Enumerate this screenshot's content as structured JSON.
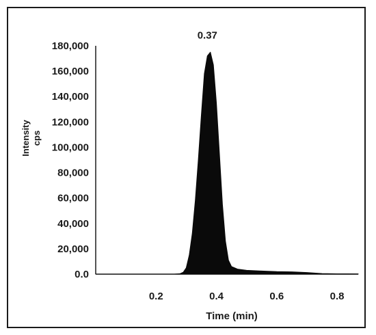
{
  "chart_data": {
    "type": "area",
    "xlabel": "Time (min)",
    "ylabel_lines": [
      "Intensity",
      "cps"
    ],
    "xlim": [
      0,
      0.87
    ],
    "ylim": [
      0,
      180000
    ],
    "xticks": [
      {
        "value": 0.2,
        "label": "0.2"
      },
      {
        "value": 0.4,
        "label": "0.4"
      },
      {
        "value": 0.6,
        "label": "0.6"
      },
      {
        "value": 0.8,
        "label": "0.8"
      }
    ],
    "yticks": [
      {
        "value": 0,
        "label": "0.0"
      },
      {
        "value": 20000,
        "label": "20,000"
      },
      {
        "value": 40000,
        "label": "40,000"
      },
      {
        "value": 60000,
        "label": "60,000"
      },
      {
        "value": 80000,
        "label": "80,000"
      },
      {
        "value": 100000,
        "label": "100,000"
      },
      {
        "value": 120000,
        "label": "120,000"
      },
      {
        "value": 140000,
        "label": "140,000"
      },
      {
        "value": 160000,
        "label": "160,000"
      },
      {
        "value": 180000,
        "label": "180,000"
      }
    ],
    "annotations": [
      {
        "x": 0.37,
        "y": 175000,
        "text": "0.37"
      }
    ],
    "grid": false,
    "series": [
      {
        "fill_color": "#0a0a0a",
        "points": [
          [
            0.0,
            0
          ],
          [
            0.2,
            0
          ],
          [
            0.26,
            0
          ],
          [
            0.28,
            400
          ],
          [
            0.29,
            1500
          ],
          [
            0.3,
            5000
          ],
          [
            0.31,
            15000
          ],
          [
            0.32,
            32000
          ],
          [
            0.33,
            58000
          ],
          [
            0.34,
            90000
          ],
          [
            0.35,
            125000
          ],
          [
            0.36,
            158000
          ],
          [
            0.37,
            172000
          ],
          [
            0.38,
            175000
          ],
          [
            0.39,
            165000
          ],
          [
            0.4,
            135000
          ],
          [
            0.41,
            95000
          ],
          [
            0.42,
            55000
          ],
          [
            0.43,
            26000
          ],
          [
            0.44,
            11000
          ],
          [
            0.45,
            6000
          ],
          [
            0.47,
            4000
          ],
          [
            0.5,
            3000
          ],
          [
            0.55,
            2500
          ],
          [
            0.6,
            2000
          ],
          [
            0.65,
            1800
          ],
          [
            0.7,
            1300
          ],
          [
            0.75,
            500
          ],
          [
            0.8,
            300
          ],
          [
            0.87,
            200
          ]
        ]
      }
    ]
  }
}
